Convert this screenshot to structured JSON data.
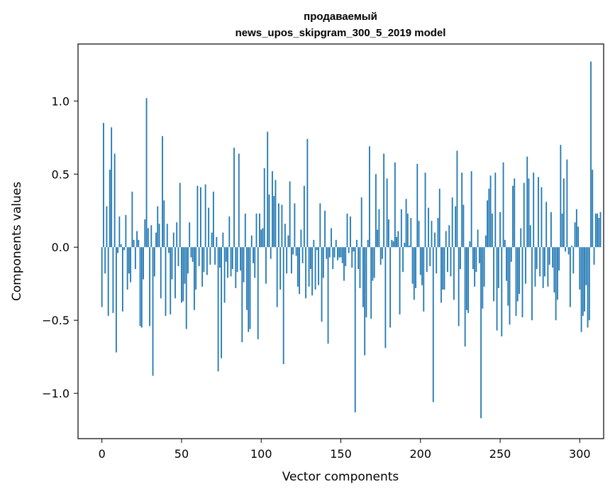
{
  "chart_data": {
    "type": "bar",
    "title_lines": [
      "продаваемый",
      "news_upos_skipgram_300_5_2019 model"
    ],
    "xlabel": "Vector components",
    "ylabel": "Components values",
    "xlim": [
      -15,
      315
    ],
    "ylim": [
      -1.31,
      1.39
    ],
    "x_ticks": [
      0,
      50,
      100,
      150,
      200,
      250,
      300
    ],
    "x_tick_labels": [
      "0",
      "50",
      "100",
      "150",
      "200",
      "250",
      "300"
    ],
    "y_ticks": [
      -1.0,
      -0.5,
      0.0,
      0.5,
      1.0
    ],
    "y_tick_labels": [
      "−1.0",
      "−0.5",
      "0.0",
      "0.5",
      "1.0"
    ],
    "bar_color": "#1f77b4",
    "x_start": 0,
    "values": [
      -0.41,
      0.85,
      -0.18,
      0.28,
      -0.47,
      0.53,
      0.82,
      -0.45,
      0.64,
      -0.72,
      -0.04,
      0.21,
      0.02,
      -0.44,
      -0.02,
      0.22,
      -0.29,
      -0.18,
      -0.24,
      0.38,
      0.05,
      -0.15,
      0.11,
      0.05,
      -0.54,
      -0.55,
      -0.22,
      0.19,
      1.02,
      0.13,
      -0.54,
      0.15,
      -0.88,
      -0.2,
      0.1,
      0.28,
      0.16,
      -0.35,
      0.76,
      0.32,
      -0.47,
      0.16,
      -0.04,
      -0.46,
      -0.22,
      0.1,
      -0.35,
      0.17,
      -0.13,
      0.44,
      -0.38,
      -0.37,
      -0.25,
      -0.56,
      -0.18,
      0.17,
      -0.07,
      -0.1,
      -0.43,
      -0.29,
      0.42,
      -0.13,
      0.41,
      -0.27,
      -0.17,
      0.43,
      -0.19,
      0.27,
      -0.12,
      0.1,
      0.38,
      -0.12,
      0.07,
      -0.85,
      -0.14,
      -0.76,
      0.1,
      -0.38,
      -0.1,
      -0.21,
      0.21,
      -0.2,
      -0.15,
      0.68,
      -0.28,
      -0.17,
      0.64,
      -0.16,
      -0.65,
      -0.24,
      0.23,
      -0.43,
      -0.58,
      -0.56,
      0.08,
      -0.11,
      -0.21,
      0.23,
      -0.63,
      0.23,
      0.12,
      0.13,
      0.54,
      -0.25,
      0.79,
      0.36,
      -0.08,
      0.52,
      0.35,
      0.46,
      -0.41,
      0.3,
      -0.29,
      0.29,
      -0.8,
      0.16,
      -0.18,
      0.08,
      0.45,
      -0.18,
      -0.05,
      0.3,
      -0.06,
      -0.27,
      -0.32,
      0.12,
      -0.11,
      0.42,
      -0.35,
      0.74,
      -0.27,
      -0.15,
      -0.33,
      0.05,
      -0.29,
      -0.02,
      -0.26,
      0.3,
      -0.51,
      -0.21,
      0.25,
      -0.08,
      -0.66,
      -0.07,
      0.13,
      -0.15,
      -0.07,
      0.05,
      -0.09,
      -0.07,
      -0.07,
      -0.11,
      -0.23,
      -0.13,
      0.23,
      -0.04,
      0.21,
      -0.14,
      -0.03,
      -1.13,
      0.05,
      -0.15,
      -0.28,
      0.34,
      -0.41,
      -0.74,
      -0.48,
      0.05,
      0.69,
      -0.49,
      -0.23,
      -0.21,
      0.5,
      0.12,
      0.26,
      -0.12,
      -0.08,
      0.64,
      -0.69,
      0.47,
      0.19,
      -0.55,
      0.05,
      0.04,
      0.58,
      0.07,
      0.11,
      -0.46,
      0.26,
      -0.17,
      0.03,
      0.33,
      0.23,
      0.01,
      0.2,
      -0.25,
      -0.36,
      -0.28,
      0.57,
      0.18,
      -0.19,
      -0.26,
      -0.44,
      0.51,
      -0.17,
      0.27,
      -0.13,
      0.18,
      -1.06,
      0.1,
      -0.18,
      0.2,
      0.4,
      -0.38,
      -0.29,
      -0.29,
      0.11,
      -0.17,
      0.15,
      -0.2,
      0.34,
      -0.36,
      0.28,
      0.66,
      -0.54,
      -0.15,
      0.51,
      0.29,
      -0.68,
      -0.43,
      -0.45,
      0.04,
      0.52,
      -0.15,
      -0.27,
      -0.17,
      0.12,
      -0.11,
      -1.17,
      -0.42,
      -0.27,
      0.08,
      0.32,
      0.4,
      0.49,
      0.23,
      -0.37,
      0.51,
      -0.57,
      -0.28,
      0.24,
      -0.61,
      0.58,
      0.05,
      -0.23,
      -0.4,
      -0.53,
      -0.1,
      0.42,
      0.47,
      -0.47,
      -0.37,
      -0.32,
      0.13,
      -0.48,
      0.44,
      -0.25,
      0.62,
      0.47,
      0.15,
      -0.5,
      0.51,
      -0.27,
      -0.15,
      0.48,
      -0.2,
      0.41,
      -0.28,
      -0.2,
      0.31,
      -0.27,
      -0.12,
      0.24,
      -0.14,
      -0.31,
      -0.5,
      -0.36,
      -0.16,
      0.7,
      0.23,
      0.47,
      -0.03,
      0.6,
      -0.05,
      -0.41,
      0.01,
      -0.18,
      0.17,
      0.26,
      0.14,
      -0.29,
      -0.58,
      -0.47,
      -0.44,
      -0.26,
      -0.55,
      -0.5,
      1.27,
      0.53,
      -0.12,
      0.23,
      0.23,
      0.2,
      0.24
    ]
  }
}
